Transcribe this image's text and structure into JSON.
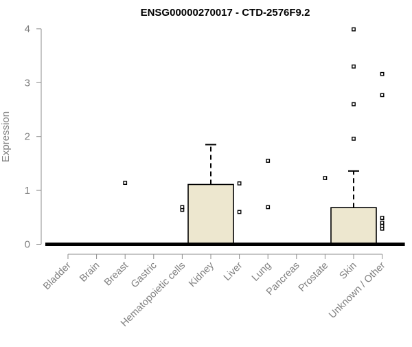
{
  "chart_data": {
    "type": "box",
    "title": "ENSG00000270017 - CTD-2576F9.2",
    "ylabel": "Expression",
    "xlabel": "",
    "ylim": [
      0,
      4
    ],
    "yticks": [
      0,
      1,
      2,
      3,
      4
    ],
    "categories": [
      "Bladder",
      "Brain",
      "Breast",
      "Gastric",
      "Hematopoietic cells",
      "Kidney",
      "Liver",
      "Lung",
      "Pancreas",
      "Prostate",
      "Skin",
      "Unknown / Other"
    ],
    "boxes": [
      {
        "category": "Bladder",
        "q1": 0,
        "median": 0,
        "q3": 0,
        "whisker_low": 0,
        "whisker_high": 0,
        "outliers": []
      },
      {
        "category": "Brain",
        "q1": 0,
        "median": 0,
        "q3": 0,
        "whisker_low": 0,
        "whisker_high": 0,
        "outliers": []
      },
      {
        "category": "Breast",
        "q1": 0,
        "median": 0,
        "q3": 0,
        "whisker_low": 0,
        "whisker_high": 0,
        "outliers": [
          1.14
        ]
      },
      {
        "category": "Gastric",
        "q1": 0,
        "median": 0,
        "q3": 0,
        "whisker_low": 0,
        "whisker_high": 0,
        "outliers": []
      },
      {
        "category": "Hematopoietic cells",
        "q1": 0,
        "median": 0,
        "q3": 0,
        "whisker_low": 0,
        "whisker_high": 0,
        "outliers": [
          0.64,
          0.69
        ]
      },
      {
        "category": "Kidney",
        "q1": 0,
        "median": 0,
        "q3": 1.11,
        "whisker_low": 0,
        "whisker_high": 1.85,
        "outliers": []
      },
      {
        "category": "Liver",
        "q1": 0,
        "median": 0,
        "q3": 0,
        "whisker_low": 0,
        "whisker_high": 0,
        "outliers": [
          0.6,
          1.13
        ]
      },
      {
        "category": "Lung",
        "q1": 0,
        "median": 0,
        "q3": 0,
        "whisker_low": 0,
        "whisker_high": 0,
        "outliers": [
          0.69,
          1.55
        ]
      },
      {
        "category": "Pancreas",
        "q1": 0,
        "median": 0,
        "q3": 0,
        "whisker_low": 0,
        "whisker_high": 0,
        "outliers": []
      },
      {
        "category": "Prostate",
        "q1": 0,
        "median": 0,
        "q3": 0,
        "whisker_low": 0,
        "whisker_high": 0,
        "outliers": [
          1.23
        ]
      },
      {
        "category": "Skin",
        "q1": 0,
        "median": 0,
        "q3": 0.68,
        "whisker_low": 0,
        "whisker_high": 1.36,
        "outliers": [
          1.96,
          2.6,
          3.3,
          3.99
        ]
      },
      {
        "category": "Unknown / Other",
        "q1": 0,
        "median": 0,
        "q3": 0,
        "whisker_low": 0,
        "whisker_high": 0,
        "outliers": [
          0.29,
          0.34,
          0.4,
          0.49,
          2.77,
          3.16
        ]
      }
    ],
    "colors": {
      "box_fill": "#ede7cf",
      "box_stroke": "#000000",
      "axis": "#8c8c8c",
      "axis_text": "#7f7f7f",
      "title": "#000000"
    },
    "grid": false,
    "legend": "none"
  }
}
